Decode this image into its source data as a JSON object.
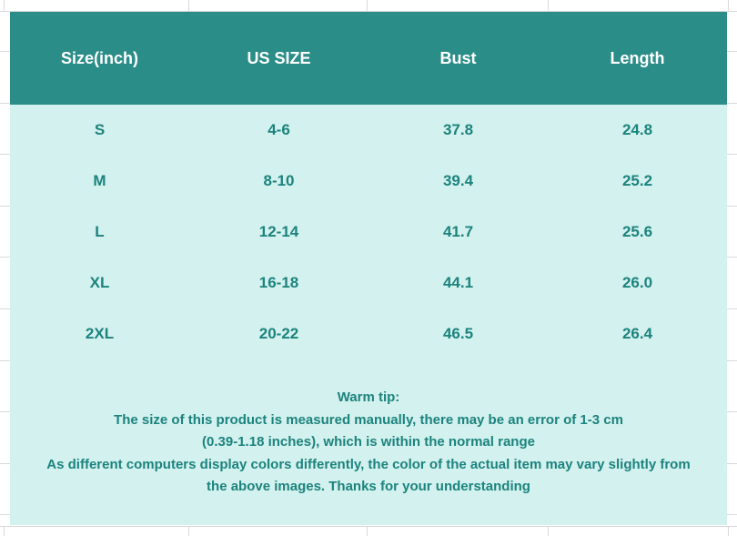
{
  "colors": {
    "page_bg": "#ffffff",
    "gridline": "#d9d9d9",
    "header_bg": "#2a8d88",
    "header_text": "#ffffff",
    "body_bg": "#d3f1ee",
    "body_text": "#1c837e"
  },
  "chart_data": {
    "type": "table",
    "columns": [
      "Size(inch)",
      "US SIZE",
      "Bust",
      "Length"
    ],
    "rows": [
      {
        "size": "S",
        "us_size": "4-6",
        "bust": "37.8",
        "length": "24.8"
      },
      {
        "size": "M",
        "us_size": "8-10",
        "bust": "39.4",
        "length": "25.2"
      },
      {
        "size": "L",
        "us_size": "12-14",
        "bust": "41.7",
        "length": "25.6"
      },
      {
        "size": "XL",
        "us_size": "16-18",
        "bust": "44.1",
        "length": "26.0"
      },
      {
        "size": "2XL",
        "us_size": "20-22",
        "bust": "46.5",
        "length": "26.4"
      }
    ]
  },
  "warm_tip": {
    "title": "Warm tip:",
    "lines": [
      "The size of this product is measured manually, there may be an error of 1-3 cm",
      "(0.39-1.18 inches), which is within the normal range",
      "As different computers display colors differently, the color of the actual item may vary slightly from",
      "the above images. Thanks for your understanding"
    ]
  }
}
